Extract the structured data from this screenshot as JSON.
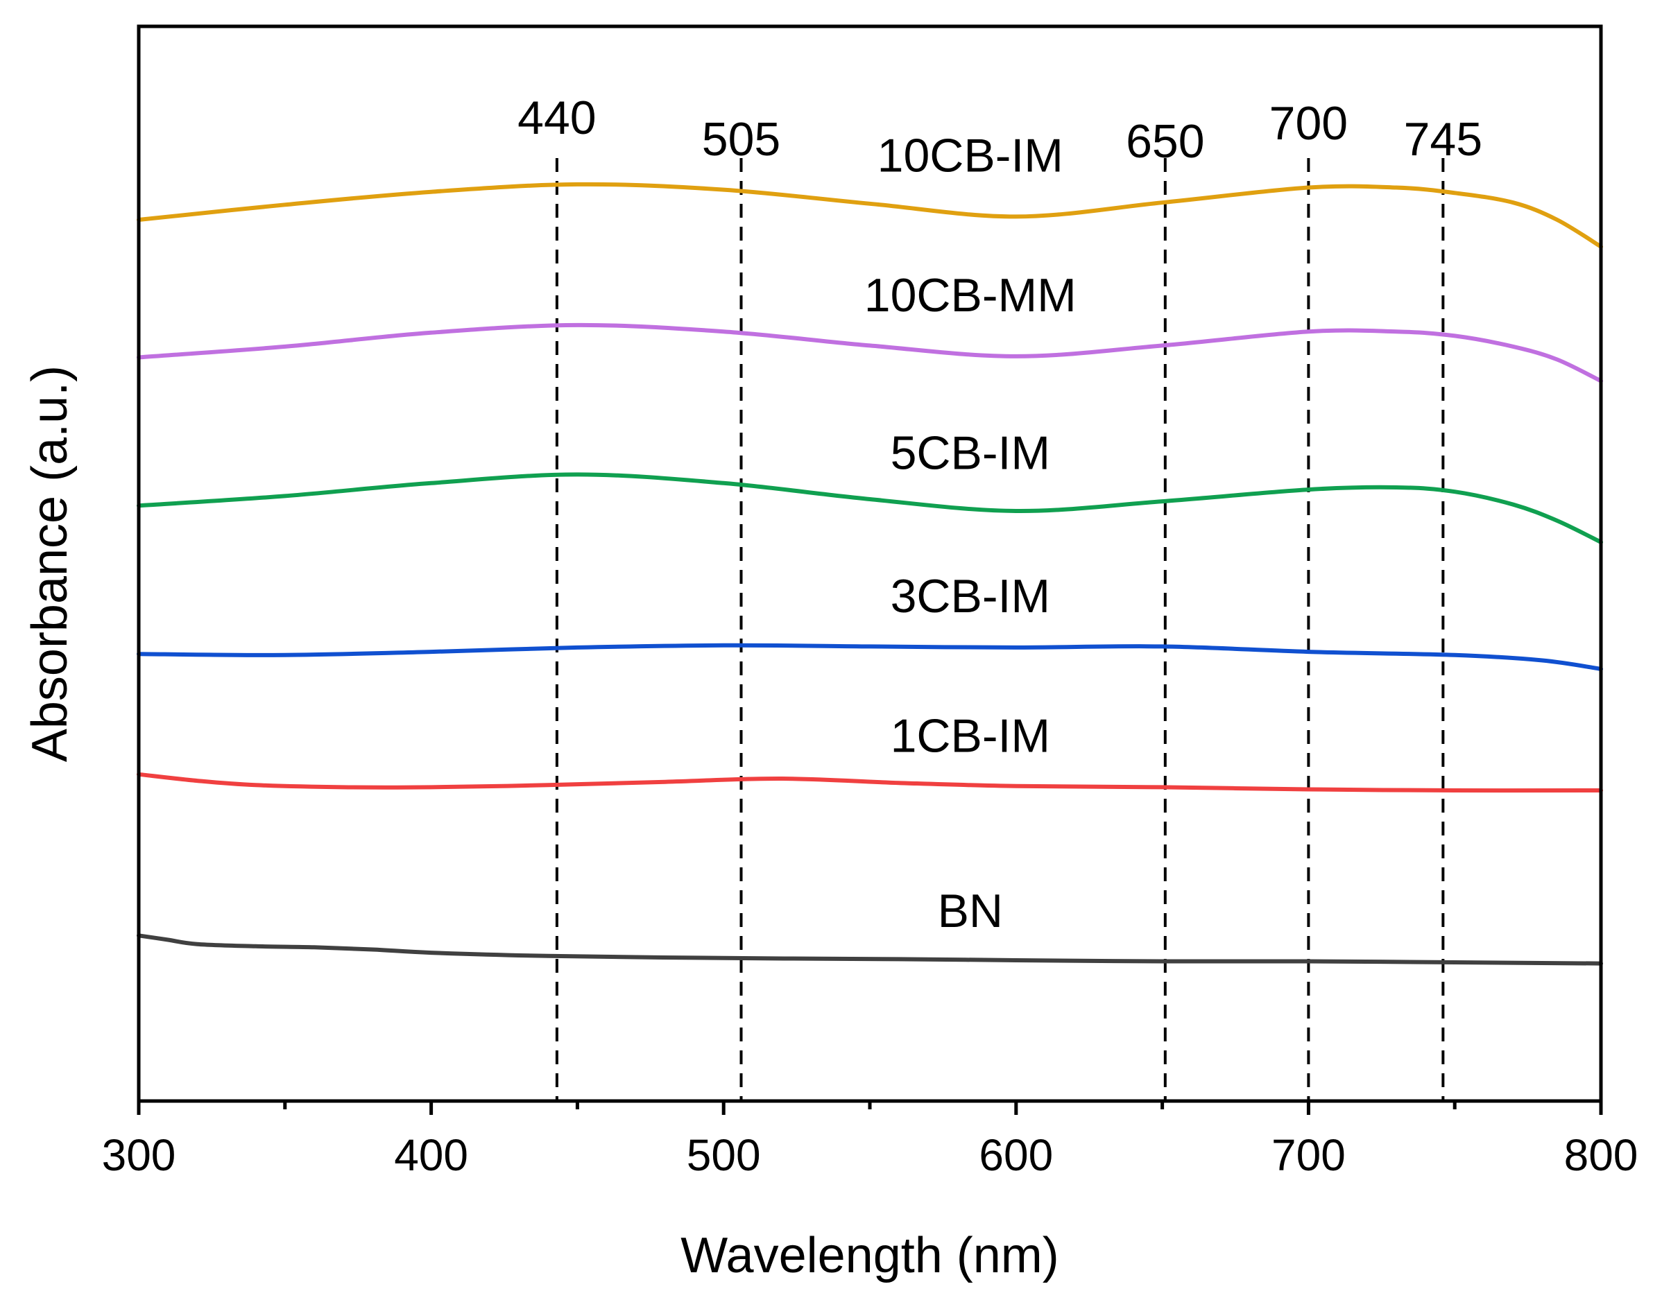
{
  "chart_data": {
    "type": "line",
    "title": "",
    "xlabel": "Wavelength (nm)",
    "ylabel": "Absorbance (a.u.)",
    "xlim": [
      300,
      800
    ],
    "ylim": [
      0,
      1
    ],
    "grid": false,
    "x_ticks": [
      "300",
      "400",
      "500",
      "600",
      "700",
      "800"
    ],
    "x_minor_ticks": [
      350,
      450,
      550,
      650,
      750
    ],
    "y_ticks_shown": false,
    "peak_markers": [
      {
        "x": 443,
        "label": "440",
        "label_level": 0.9
      },
      {
        "x": 506,
        "label": "505",
        "label_level": 0.88
      },
      {
        "x": 651,
        "label": "650",
        "label_level": 0.878
      },
      {
        "x": 700,
        "label": "700",
        "label_level": 0.895
      },
      {
        "x": 746,
        "label": "745",
        "label_level": 0.88
      }
    ],
    "series": [
      {
        "name": "10CB-IM",
        "color": "#E0A010",
        "label_x": 600,
        "label_level": 0.865,
        "points": [
          [
            300,
            0.82
          ],
          [
            350,
            0.834
          ],
          [
            400,
            0.846
          ],
          [
            450,
            0.853
          ],
          [
            500,
            0.848
          ],
          [
            550,
            0.835
          ],
          [
            600,
            0.823
          ],
          [
            650,
            0.836
          ],
          [
            700,
            0.85
          ],
          [
            730,
            0.85
          ],
          [
            750,
            0.845
          ],
          [
            770,
            0.836
          ],
          [
            785,
            0.82
          ],
          [
            800,
            0.795
          ]
        ]
      },
      {
        "name": "10CB-MM",
        "color": "#C070E0",
        "label_x": 600,
        "label_level": 0.735,
        "points": [
          [
            300,
            0.692
          ],
          [
            350,
            0.702
          ],
          [
            400,
            0.715
          ],
          [
            450,
            0.722
          ],
          [
            500,
            0.716
          ],
          [
            550,
            0.703
          ],
          [
            600,
            0.693
          ],
          [
            650,
            0.703
          ],
          [
            700,
            0.716
          ],
          [
            730,
            0.716
          ],
          [
            750,
            0.712
          ],
          [
            770,
            0.702
          ],
          [
            785,
            0.69
          ],
          [
            800,
            0.67
          ]
        ]
      },
      {
        "name": "5CB-IM",
        "color": "#10A050",
        "label_x": 600,
        "label_level": 0.588,
        "points": [
          [
            300,
            0.554
          ],
          [
            350,
            0.563
          ],
          [
            400,
            0.575
          ],
          [
            450,
            0.583
          ],
          [
            500,
            0.575
          ],
          [
            550,
            0.56
          ],
          [
            600,
            0.549
          ],
          [
            650,
            0.558
          ],
          [
            700,
            0.569
          ],
          [
            730,
            0.571
          ],
          [
            750,
            0.567
          ],
          [
            770,
            0.555
          ],
          [
            785,
            0.54
          ],
          [
            800,
            0.52
          ]
        ]
      },
      {
        "name": "3CB-IM",
        "color": "#1050D0",
        "label_x": 600,
        "label_level": 0.455,
        "points": [
          [
            300,
            0.416
          ],
          [
            350,
            0.415
          ],
          [
            400,
            0.418
          ],
          [
            450,
            0.422
          ],
          [
            500,
            0.424
          ],
          [
            550,
            0.423
          ],
          [
            600,
            0.422
          ],
          [
            650,
            0.423
          ],
          [
            700,
            0.418
          ],
          [
            750,
            0.415
          ],
          [
            780,
            0.41
          ],
          [
            800,
            0.402
          ]
        ]
      },
      {
        "name": "1CB-IM",
        "color": "#F04040",
        "label_x": 600,
        "label_level": 0.325,
        "points": [
          [
            300,
            0.304
          ],
          [
            320,
            0.298
          ],
          [
            340,
            0.294
          ],
          [
            370,
            0.292
          ],
          [
            400,
            0.292
          ],
          [
            440,
            0.294
          ],
          [
            480,
            0.297
          ],
          [
            520,
            0.3
          ],
          [
            560,
            0.296
          ],
          [
            600,
            0.293
          ],
          [
            650,
            0.292
          ],
          [
            700,
            0.29
          ],
          [
            750,
            0.289
          ],
          [
            800,
            0.289
          ]
        ]
      },
      {
        "name": "BN",
        "color": "#404040",
        "label_x": 600,
        "label_level": 0.162,
        "points": [
          [
            300,
            0.154
          ],
          [
            310,
            0.15
          ],
          [
            320,
            0.146
          ],
          [
            340,
            0.144
          ],
          [
            360,
            0.143
          ],
          [
            380,
            0.141
          ],
          [
            400,
            0.138
          ],
          [
            440,
            0.135
          ],
          [
            500,
            0.133
          ],
          [
            560,
            0.132
          ],
          [
            600,
            0.131
          ],
          [
            650,
            0.13
          ],
          [
            700,
            0.13
          ],
          [
            750,
            0.129
          ],
          [
            800,
            0.128
          ]
        ]
      }
    ]
  }
}
